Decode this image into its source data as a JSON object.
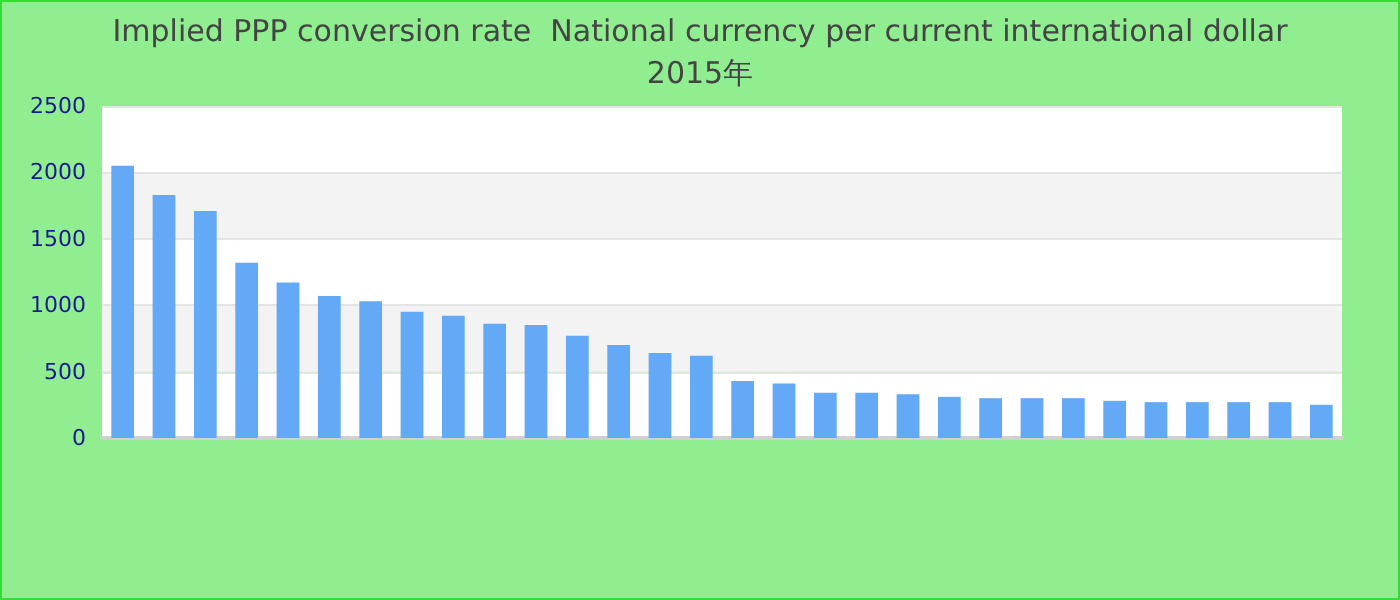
{
  "chart_data": {
    "type": "bar",
    "title": "Implied PPP conversion rate  National currency per current international dollar",
    "subtitle": "2015年",
    "categories": [
      null,
      null,
      null,
      null,
      null,
      null,
      null,
      null,
      null,
      null,
      null,
      null,
      null,
      null,
      null,
      null,
      null,
      null,
      null,
      null,
      null,
      null,
      null,
      null,
      null,
      null,
      null,
      null,
      null,
      null
    ],
    "values": [
      2050,
      1830,
      1710,
      1320,
      1170,
      1070,
      1030,
      950,
      920,
      860,
      850,
      770,
      700,
      640,
      620,
      430,
      410,
      340,
      340,
      330,
      310,
      300,
      300,
      300,
      280,
      270,
      270,
      270,
      270,
      250
    ],
    "color": "#63a9f5",
    "ylim": [
      0,
      2500
    ],
    "yticks": [
      0,
      500,
      1000,
      1500,
      2000,
      2500
    ],
    "grid": "y"
  }
}
